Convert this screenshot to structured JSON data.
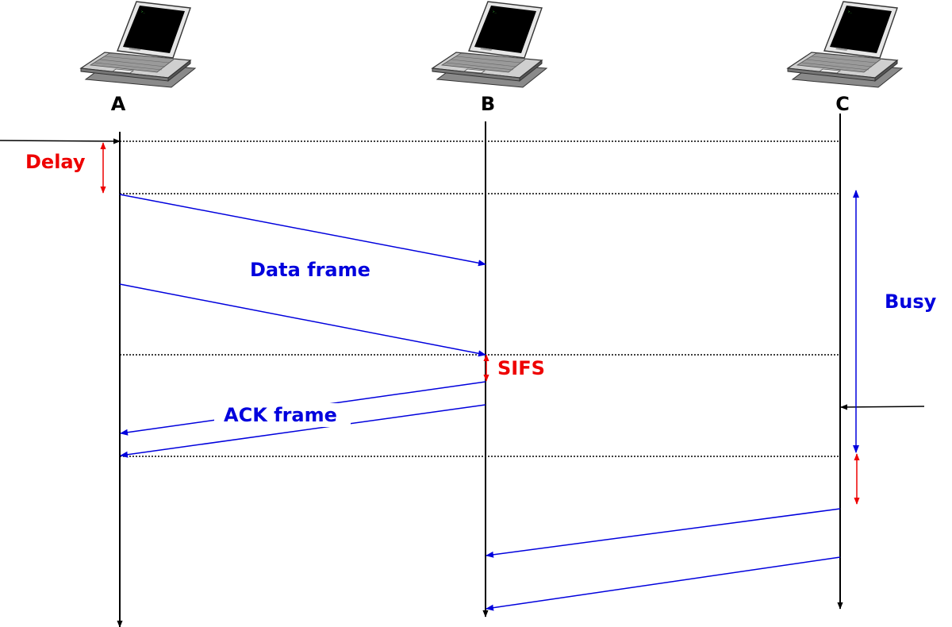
{
  "nodes": [
    {
      "id": "A",
      "label": "A"
    },
    {
      "id": "B",
      "label": "B"
    },
    {
      "id": "C",
      "label": "C"
    }
  ],
  "labels": {
    "delay": "Delay",
    "data_frame": "Data frame",
    "busy": "Busy",
    "sifs": "SIFS",
    "ack_frame": "ACK frame"
  },
  "colors": {
    "black": "#000000",
    "red": "#ee0000",
    "blue": "#0000dd"
  },
  "icons": {
    "node": "laptop-icon"
  }
}
